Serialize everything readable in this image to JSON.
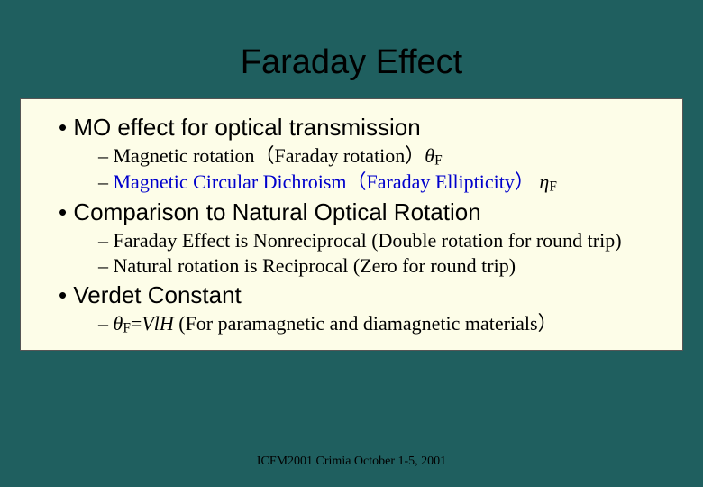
{
  "slide": {
    "title": "Faraday Effect",
    "title_fontsize": 38,
    "background_color": "#1f5f5f",
    "box_background": "#fdfde8",
    "box_border": "#555555",
    "l1_fontsize": 26,
    "l2_fontsize": 22,
    "footer": "ICFM2001 Crimia October 1-5, 2001",
    "footer_fontsize": 14,
    "sections": [
      {
        "heading": "MO effect for optical transmission",
        "items": [
          {
            "html": "Magnetic rotation（Faraday rotation）<span class='italic'>θ</span><sub>F</sub>"
          },
          {
            "html": "<span class='blue'>Magnetic Circular Dichroism（Faraday Ellipticity）</span> <span class='italic'>η</span><sub>F</sub>"
          }
        ]
      },
      {
        "heading": "Comparison to Natural Optical Rotation",
        "items": [
          {
            "html": "Faraday Effect is Nonreciprocal (Double rotation for round trip)"
          },
          {
            "html": "Natural rotation is Reciprocal (Zero for round trip)"
          }
        ]
      },
      {
        "heading": "Verdet Constant",
        "items": [
          {
            "html": "<span class='italic'>θ</span><sub>F</sub>=<span class='italic'>VlH</span> (For paramagnetic and diamagnetic materials）"
          }
        ]
      }
    ]
  }
}
